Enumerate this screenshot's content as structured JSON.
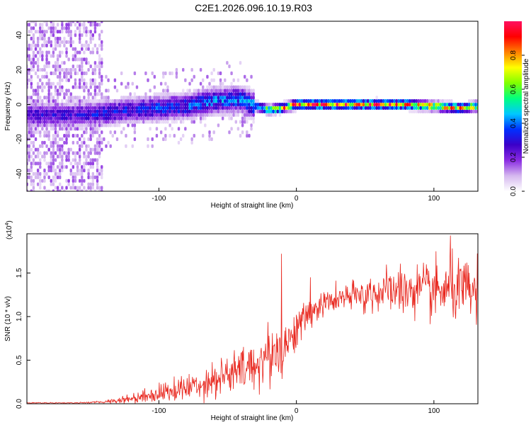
{
  "figure_title": "C2E1.2026.096.10.19.R03",
  "chart_data": [
    {
      "type": "heatmap",
      "panel": "top",
      "xlabel": "Height of straight line (km)",
      "ylabel": "Frequency (Hz)",
      "xlim": [
        -196,
        132
      ],
      "ylim": [
        -50,
        48
      ],
      "xticks": [
        -100,
        0,
        100
      ],
      "xtick_labels": [
        "-100",
        "0",
        "100"
      ],
      "yticks": [
        -40,
        -20,
        0,
        20,
        40
      ],
      "ytick_labels": [
        "-40",
        "-20",
        "0",
        "20",
        "40"
      ],
      "colorbar": {
        "label": "Normalized spectral amplitude",
        "range": [
          0,
          1
        ],
        "ticks": [
          0,
          0.2,
          0.4,
          0.6,
          0.8
        ],
        "tick_labels": [
          "0.0",
          "0.2",
          "0.4",
          "0.6",
          "0.8"
        ],
        "colormap": [
          "#ffffff",
          "#d5b8ef",
          "#8a2be2",
          "#3c00c8",
          "#0030ff",
          "#00c8ff",
          "#00ff80",
          "#80ff00",
          "#ffff00",
          "#ff8000",
          "#ff0000",
          "#ff1060"
        ]
      },
      "signal_line": {
        "description_x": [
          -160,
          -140,
          -120,
          -100,
          -80,
          -60,
          -40,
          -30,
          -20,
          -10,
          0,
          20,
          40,
          60,
          80,
          100,
          120,
          132
        ],
        "frequency": [
          -6,
          -5,
          -3,
          -2,
          -1,
          2,
          3,
          -1,
          -3,
          -2,
          0,
          0,
          0,
          0,
          0,
          -1,
          -2,
          -1
        ],
        "peak_amplitude": [
          0.3,
          0.35,
          0.35,
          0.4,
          0.4,
          0.45,
          0.45,
          0.5,
          0.75,
          0.85,
          0.95,
          1.0,
          0.95,
          1.0,
          0.95,
          0.9,
          0.85,
          0.85
        ]
      },
      "noise_region_x": [
        -196,
        -141
      ]
    },
    {
      "type": "line",
      "panel": "bottom",
      "xlabel": "Height of straight line (km)",
      "ylabel": "SNR (10 * v/v)",
      "y_multiplier_label": "(x10",
      "y_multiplier_exp": "4",
      "y_multiplier_close": ")",
      "xlim": [
        -196,
        132
      ],
      "ylim": [
        0,
        1.95
      ],
      "xticks": [
        -100,
        0,
        100
      ],
      "xtick_labels": [
        "-100",
        "0",
        "100"
      ],
      "yticks": [
        0,
        0.5,
        1.0,
        1.5
      ],
      "ytick_labels": [
        "0.0",
        "0.5",
        "1.0",
        "1.5"
      ],
      "color": "#e8241b",
      "series": [
        {
          "name": "SNR",
          "x": [
            -196,
            -180,
            -160,
            -140,
            -130,
            -120,
            -110,
            -100,
            -90,
            -80,
            -70,
            -60,
            -50,
            -40,
            -30,
            -20,
            -15,
            -10,
            -5,
            0,
            5,
            10,
            20,
            30,
            40,
            50,
            60,
            70,
            80,
            90,
            100,
            110,
            120,
            132
          ],
          "y": [
            0.01,
            0.01,
            0.01,
            0.02,
            0.04,
            0.06,
            0.09,
            0.12,
            0.15,
            0.18,
            0.23,
            0.28,
            0.33,
            0.38,
            0.45,
            0.55,
            0.62,
            0.6,
            0.75,
            0.85,
            0.95,
            1.05,
            1.15,
            1.2,
            1.22,
            1.25,
            1.28,
            1.3,
            1.3,
            1.3,
            1.28,
            1.3,
            1.3,
            1.25
          ],
          "noise_amplitude": [
            0.005,
            0.005,
            0.005,
            0.01,
            0.03,
            0.05,
            0.07,
            0.09,
            0.11,
            0.13,
            0.15,
            0.18,
            0.2,
            0.22,
            0.25,
            0.28,
            0.3,
            0.3,
            0.2,
            0.18,
            0.18,
            0.15,
            0.12,
            0.12,
            0.15,
            0.18,
            0.2,
            0.22,
            0.25,
            0.25,
            0.27,
            0.28,
            0.3,
            0.3
          ]
        }
      ],
      "annotated_peaks": [
        {
          "x": -11,
          "y": 1.72
        },
        {
          "x": 10,
          "y": 1.45
        },
        {
          "x": 112,
          "y": 1.93
        }
      ]
    }
  ]
}
